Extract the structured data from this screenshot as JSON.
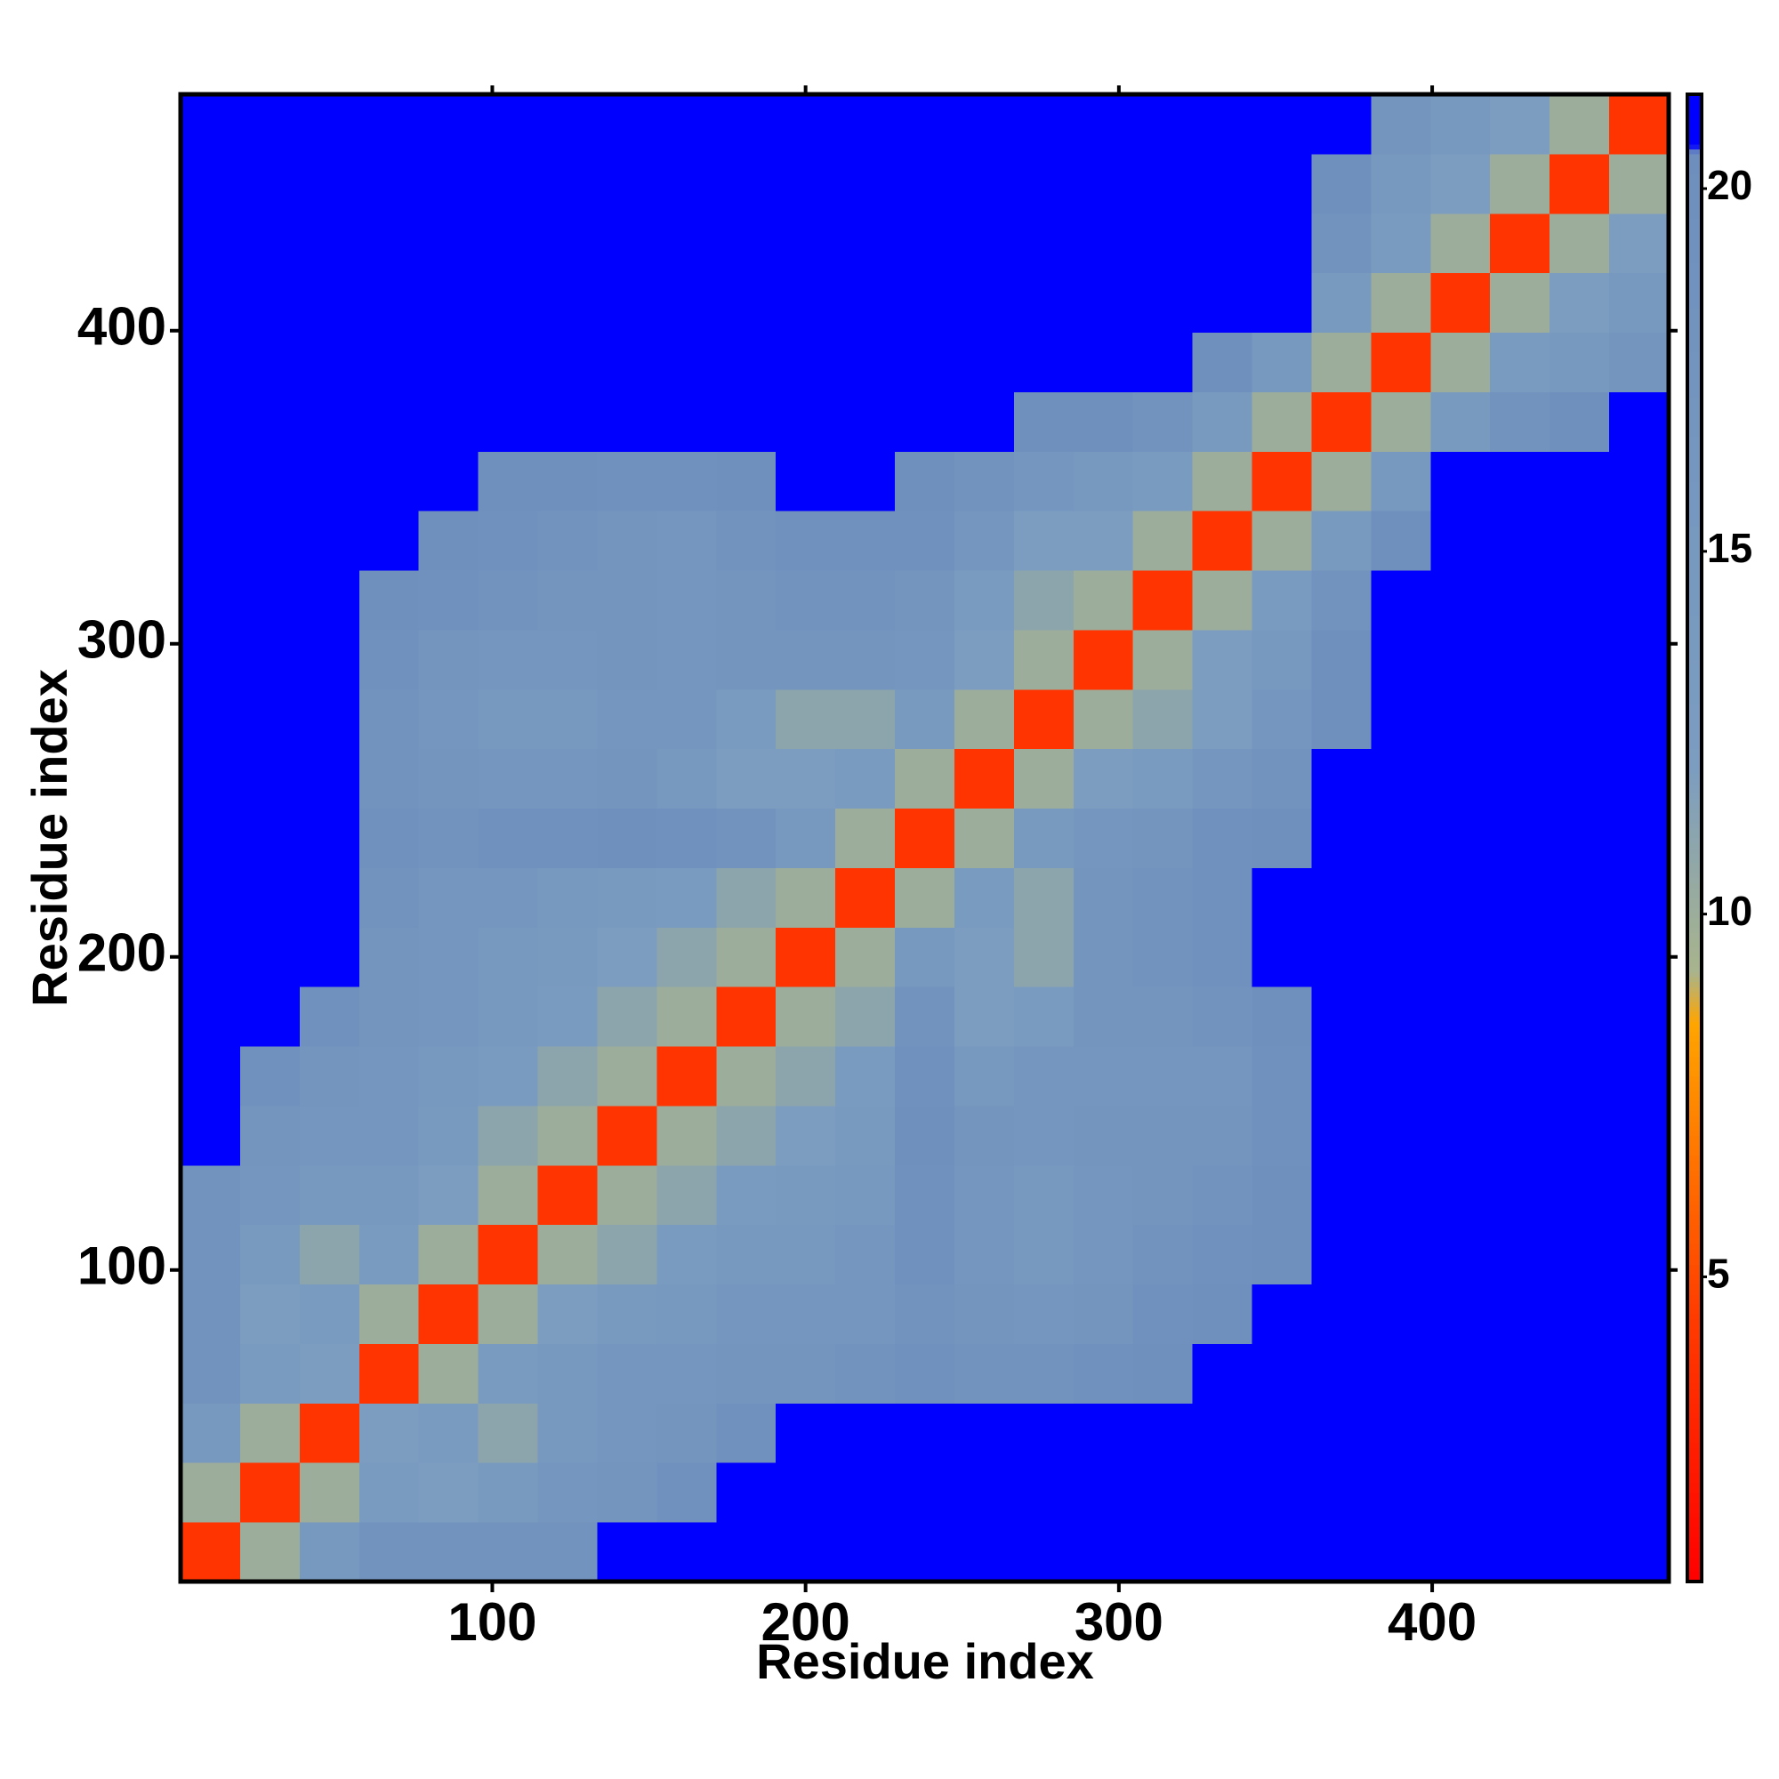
{
  "chart_data": {
    "type": "heatmap",
    "x_label": "Residue index",
    "y_label": "Residue index",
    "x": [
      10,
      29,
      48,
      67,
      86,
      105,
      124,
      143,
      162,
      181,
      200,
      219,
      238,
      257,
      276,
      295,
      314,
      333,
      352,
      371,
      390,
      409,
      428,
      447,
      466
    ],
    "y": [
      10,
      29,
      48,
      67,
      86,
      105,
      124,
      143,
      162,
      181,
      200,
      219,
      238,
      257,
      276,
      295,
      314,
      333,
      352,
      371,
      390,
      409,
      428,
      447,
      466
    ],
    "z": [
      [
        4,
        10,
        15,
        18,
        18,
        18,
        18,
        21,
        21,
        21,
        21,
        21,
        21,
        21,
        21,
        21,
        21,
        21,
        21,
        21,
        21,
        21,
        21,
        21,
        21
      ],
      [
        10,
        4,
        10,
        13,
        12,
        14,
        16,
        17,
        19,
        21,
        21,
        21,
        21,
        21,
        21,
        21,
        21,
        21,
        21,
        21,
        21,
        21,
        21,
        21,
        21
      ],
      [
        15,
        10,
        4,
        12,
        13,
        11,
        15,
        16,
        17,
        19,
        21,
        21,
        21,
        21,
        21,
        21,
        21,
        21,
        21,
        21,
        21,
        21,
        21,
        21,
        21
      ],
      [
        18,
        13,
        12,
        4,
        10,
        13,
        15,
        16,
        16,
        17,
        17,
        18,
        19,
        18,
        18,
        19,
        20,
        21,
        21,
        21,
        21,
        21,
        21,
        21,
        21
      ],
      [
        18,
        12,
        13,
        10,
        4,
        10,
        12,
        14,
        15,
        16,
        16,
        16,
        18,
        17,
        16,
        17,
        19,
        20,
        21,
        21,
        21,
        21,
        21,
        21,
        21
      ],
      [
        18,
        14,
        11,
        13,
        10,
        4,
        10,
        11,
        13,
        15,
        15,
        16,
        19,
        16,
        15,
        16,
        18,
        19,
        20,
        21,
        21,
        21,
        21,
        21,
        21
      ],
      [
        18,
        16,
        15,
        15,
        12,
        10,
        4,
        10,
        11,
        13,
        14,
        15,
        19,
        16,
        15,
        16,
        17,
        18,
        20,
        21,
        21,
        21,
        21,
        21,
        21
      ],
      [
        21,
        17,
        16,
        16,
        14,
        11,
        10,
        4,
        10,
        11,
        12,
        14,
        20,
        17,
        16,
        17,
        17,
        17,
        19,
        21,
        21,
        21,
        21,
        21,
        21
      ],
      [
        21,
        19,
        17,
        16,
        15,
        13,
        11,
        10,
        4,
        10,
        11,
        13,
        19,
        15,
        16,
        16,
        16,
        16,
        19,
        21,
        21,
        21,
        21,
        21,
        21
      ],
      [
        21,
        21,
        19,
        17,
        16,
        15,
        13,
        11,
        10,
        4,
        10,
        11,
        18,
        12,
        13,
        17,
        17,
        18,
        20,
        21,
        21,
        21,
        21,
        21,
        21
      ],
      [
        21,
        21,
        21,
        17,
        16,
        15,
        14,
        12,
        11,
        10,
        4,
        10,
        15,
        12,
        11,
        17,
        18,
        19,
        21,
        21,
        21,
        21,
        21,
        21,
        21
      ],
      [
        21,
        21,
        21,
        18,
        16,
        16,
        15,
        14,
        13,
        11,
        10,
        4,
        10,
        13,
        11,
        17,
        18,
        19,
        21,
        21,
        21,
        21,
        21,
        21,
        21
      ],
      [
        21,
        21,
        21,
        19,
        18,
        19,
        19,
        20,
        19,
        18,
        15,
        10,
        4,
        10,
        14,
        16,
        17,
        19,
        20,
        21,
        21,
        21,
        21,
        21,
        21
      ],
      [
        21,
        21,
        21,
        18,
        17,
        16,
        16,
        17,
        15,
        12,
        12,
        13,
        10,
        4,
        10,
        12,
        13,
        16,
        18,
        21,
        21,
        21,
        21,
        21,
        21
      ],
      [
        21,
        21,
        21,
        18,
        16,
        15,
        15,
        16,
        16,
        13,
        11,
        11,
        14,
        10,
        4,
        10,
        11,
        12,
        16,
        20,
        21,
        21,
        21,
        21,
        21
      ],
      [
        21,
        21,
        21,
        19,
        17,
        16,
        16,
        17,
        16,
        17,
        17,
        17,
        16,
        12,
        10,
        4,
        10,
        12,
        15,
        20,
        21,
        21,
        21,
        21,
        21
      ],
      [
        21,
        21,
        21,
        20,
        19,
        18,
        17,
        17,
        16,
        17,
        18,
        18,
        17,
        13,
        11,
        10,
        4,
        10,
        13,
        18,
        21,
        21,
        21,
        21,
        21
      ],
      [
        21,
        21,
        21,
        21,
        20,
        19,
        18,
        17,
        16,
        18,
        19,
        19,
        19,
        16,
        12,
        12,
        10,
        4,
        10,
        14,
        20,
        21,
        21,
        21,
        21
      ],
      [
        21,
        21,
        21,
        21,
        21,
        20,
        20,
        19,
        19,
        20,
        21,
        21,
        20,
        18,
        16,
        15,
        13,
        10,
        4,
        10,
        15,
        21,
        21,
        21,
        21
      ],
      [
        21,
        21,
        21,
        21,
        21,
        21,
        21,
        21,
        21,
        21,
        21,
        21,
        21,
        21,
        20,
        20,
        18,
        14,
        10,
        4,
        10,
        14,
        18,
        20,
        21
      ],
      [
        21,
        21,
        21,
        21,
        21,
        21,
        21,
        21,
        21,
        21,
        21,
        21,
        21,
        21,
        21,
        21,
        21,
        20,
        15,
        10,
        4,
        10,
        13,
        15,
        17
      ],
      [
        21,
        21,
        21,
        21,
        21,
        21,
        21,
        21,
        21,
        21,
        21,
        21,
        21,
        21,
        21,
        21,
        21,
        21,
        21,
        14,
        10,
        4,
        10,
        12,
        15
      ],
      [
        21,
        21,
        21,
        21,
        21,
        21,
        21,
        21,
        21,
        21,
        21,
        21,
        21,
        21,
        21,
        21,
        21,
        21,
        21,
        18,
        13,
        10,
        4,
        10,
        12
      ],
      [
        21,
        21,
        21,
        21,
        21,
        21,
        21,
        21,
        21,
        21,
        21,
        21,
        21,
        21,
        21,
        21,
        21,
        21,
        21,
        20,
        15,
        12,
        10,
        4,
        10
      ],
      [
        21,
        21,
        21,
        21,
        21,
        21,
        21,
        21,
        21,
        21,
        21,
        21,
        21,
        21,
        21,
        21,
        21,
        21,
        21,
        21,
        17,
        15,
        12,
        10,
        4
      ]
    ],
    "xlim": [
      0.5,
      475.5
    ],
    "ylim": [
      0.5,
      475.5
    ],
    "xticks": [
      100,
      200,
      300,
      400
    ],
    "yticks": [
      100,
      200,
      300,
      400
    ],
    "zlim": [
      0.8,
      21.3
    ],
    "zticks": [
      5,
      10,
      15,
      20
    ],
    "colorscale": [
      [
        0.8,
        "#ff0000"
      ],
      [
        4.5,
        "#ff3c00"
      ],
      [
        8.5,
        "#ffa500"
      ],
      [
        9.2,
        "#a9b48c"
      ],
      [
        12,
        "#7c9dc0"
      ],
      [
        20.5,
        "#6e8fbd"
      ],
      [
        20.6,
        "#0000ff"
      ],
      [
        21.3,
        "#0000ff"
      ]
    ]
  }
}
